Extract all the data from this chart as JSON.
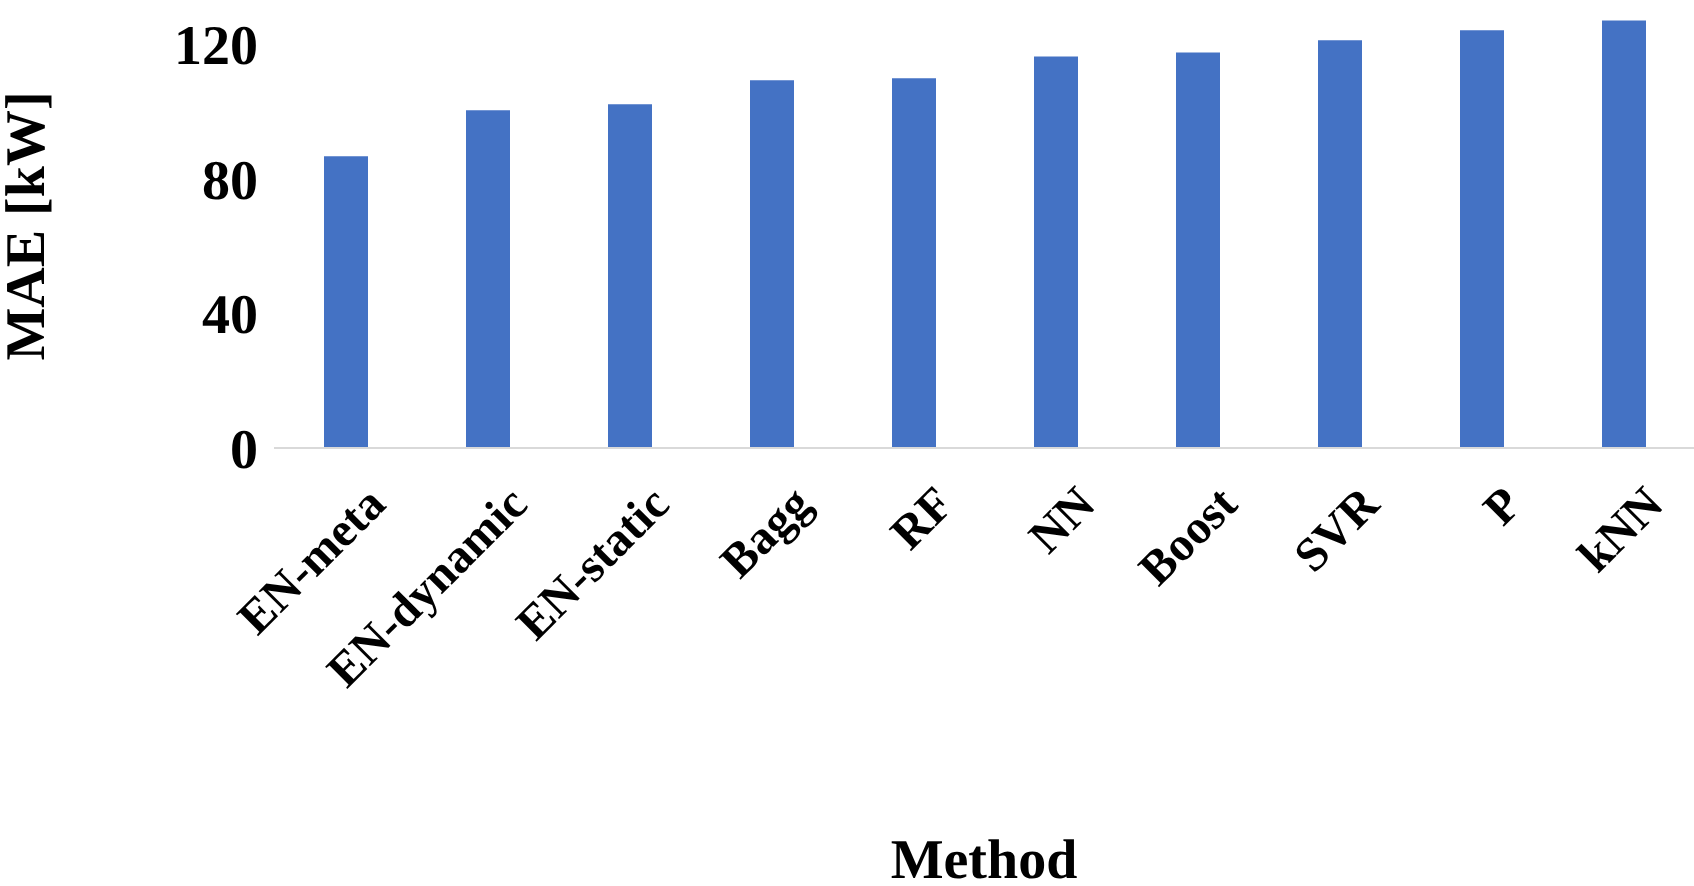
{
  "chart_data": {
    "type": "bar",
    "xlabel": "Method",
    "ylabel": "MAE  [kW]",
    "categories": [
      "EN-meta",
      "EN-dynamic",
      "EN-static",
      "Bagg",
      "RF",
      "NN",
      "Boost",
      "SVR",
      "P",
      "kNN"
    ],
    "values": [
      86.7,
      100.4,
      102.2,
      109.3,
      109.9,
      116.4,
      117.6,
      121.2,
      124.2,
      127.1
    ],
    "color": "#4472c4",
    "ylim": [
      0,
      132
    ],
    "yticks": [
      0,
      40,
      80,
      120
    ],
    "grid": false,
    "legend": false
  }
}
